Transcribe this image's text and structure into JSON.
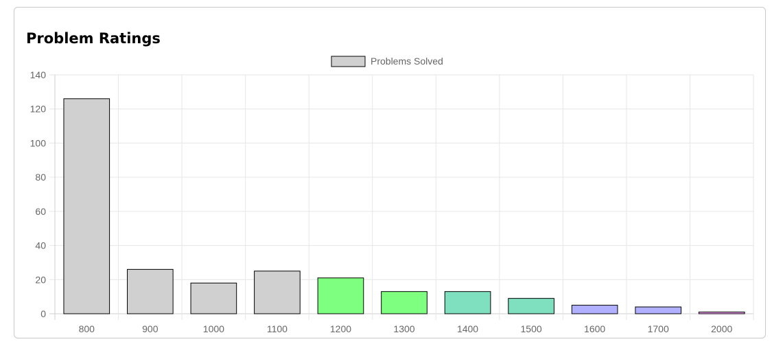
{
  "card": {
    "title": "Problem Ratings"
  },
  "chart_data": {
    "type": "bar",
    "title": "Problem Ratings",
    "categories": [
      "800",
      "900",
      "1000",
      "1100",
      "1200",
      "1300",
      "1400",
      "1500",
      "1600",
      "1700",
      "2000"
    ],
    "series": [
      {
        "name": "Problems Solved",
        "values": [
          126,
          26,
          18,
          25,
          21,
          13,
          13,
          9,
          5,
          4,
          1
        ]
      }
    ],
    "bar_colors": [
      "#d0d0d0",
      "#d0d0d0",
      "#d0d0d0",
      "#d0d0d0",
      "#7fff7f",
      "#7fff7f",
      "#7fe0c0",
      "#7fe0c0",
      "#b0b0ff",
      "#b0b0ff",
      "#f4a0f4"
    ],
    "legend_color": "#d0d0d0",
    "xlabel": "",
    "ylabel": "",
    "ylim": [
      0,
      140
    ],
    "yticks": [
      0,
      20,
      40,
      60,
      80,
      100,
      120,
      140
    ],
    "grid": true,
    "legend_position": "top-center"
  }
}
